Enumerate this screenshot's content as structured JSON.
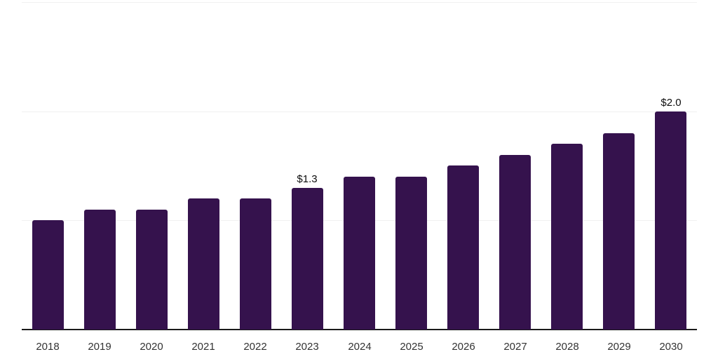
{
  "chart_data": {
    "type": "bar",
    "title": "",
    "xlabel": "",
    "ylabel": "",
    "categories": [
      "2018",
      "2019",
      "2020",
      "2021",
      "2022",
      "2023",
      "2024",
      "2025",
      "2026",
      "2027",
      "2028",
      "2029",
      "2030"
    ],
    "values": [
      1.0,
      1.1,
      1.1,
      1.2,
      1.2,
      1.3,
      1.4,
      1.4,
      1.5,
      1.6,
      1.7,
      1.8,
      2.0
    ],
    "data_labels": [
      null,
      null,
      null,
      null,
      null,
      "$1.3",
      null,
      null,
      null,
      null,
      null,
      null,
      "$2.0"
    ],
    "ylim": [
      0,
      3
    ],
    "gridline_values": [
      1,
      2,
      3
    ],
    "grid": "horizontal-only",
    "y_tick_labels_shown": false,
    "legend": "none",
    "colors": {
      "bar": "#35124D",
      "gridline": "#F0F0F0",
      "axis_line": "#1A1A1A",
      "tick_label": "#333333",
      "data_label": "#0D0D0D",
      "background": "#FFFFFF"
    }
  }
}
